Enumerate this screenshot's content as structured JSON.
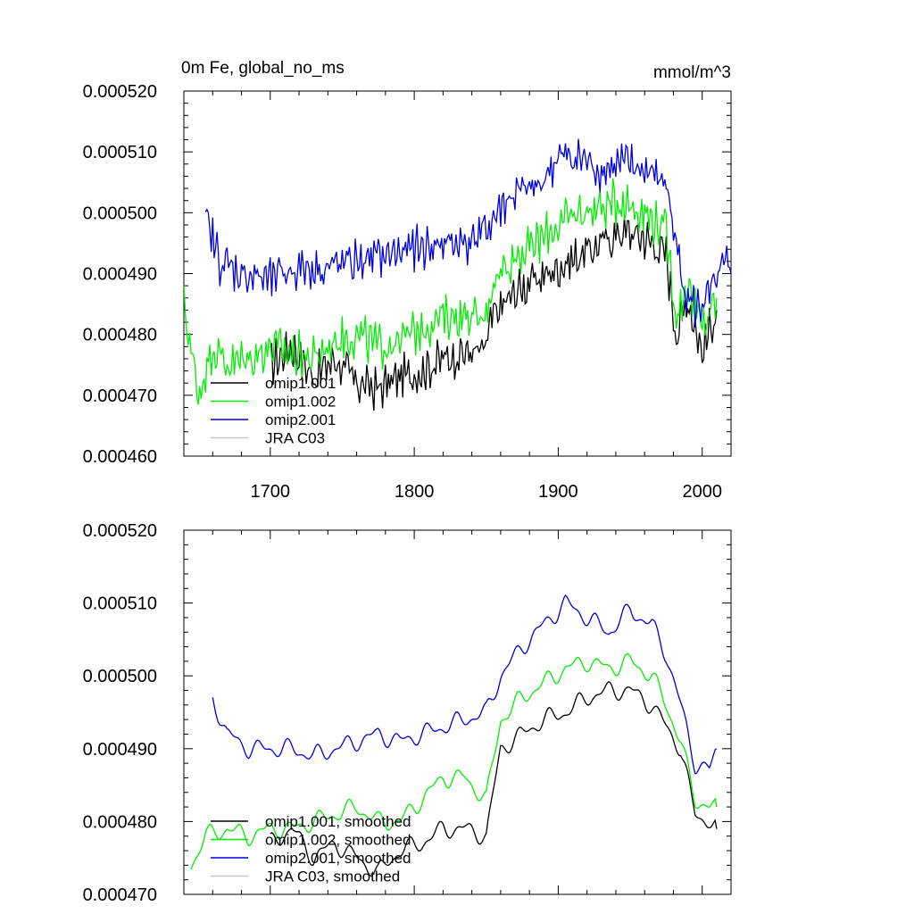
{
  "figure": {
    "title_left": "0m Fe, global_no_ms",
    "title_right": "mmol/m^3"
  },
  "chart_data": [
    {
      "type": "line",
      "title": "0m Fe, global_no_ms",
      "units": "mmol/m^3",
      "ylim": [
        0.00046,
        0.00052
      ],
      "xlim": [
        1640,
        2020
      ],
      "yticks": [
        "0.000460",
        "0.000470",
        "0.000480",
        "0.000490",
        "0.000500",
        "0.000510",
        "0.000520"
      ],
      "xticks": [
        "1700",
        "1800",
        "1900",
        "2000"
      ],
      "grid": false,
      "legend_position": "bottom-left",
      "series": [
        {
          "name": "omip1.001",
          "color": "#000000",
          "x": [
            1700,
            1715,
            1730,
            1745,
            1760,
            1775,
            1790,
            1805,
            1820,
            1835,
            1848,
            1855,
            1870,
            1885,
            1900,
            1915,
            1930,
            1945,
            1960,
            1975,
            1982,
            1990,
            2000,
            2010
          ],
          "values": [
            0.000475,
            0.000478,
            0.000473,
            0.000476,
            0.000472,
            0.000471,
            0.000473,
            0.000474,
            0.000476,
            0.000477,
            0.000477,
            0.000483,
            0.000487,
            0.000489,
            0.000491,
            0.000493,
            0.000495,
            0.000497,
            0.000496,
            0.000493,
            0.00048,
            0.000486,
            0.000477,
            0.000484
          ]
        },
        {
          "name": "omip1.002",
          "color": "#00ee00",
          "x": [
            1640,
            1650,
            1660,
            1670,
            1685,
            1700,
            1715,
            1730,
            1745,
            1760,
            1775,
            1790,
            1805,
            1820,
            1835,
            1848,
            1855,
            1870,
            1885,
            1900,
            1915,
            1930,
            1945,
            1960,
            1975,
            1982,
            1990,
            2000,
            2010
          ],
          "values": [
            0.000485,
            0.00047,
            0.000478,
            0.000475,
            0.000476,
            0.000478,
            0.000477,
            0.000476,
            0.000479,
            0.00048,
            0.000478,
            0.000479,
            0.000481,
            0.000483,
            0.000483,
            0.000482,
            0.000489,
            0.000493,
            0.000495,
            0.000498,
            0.0005,
            0.000501,
            0.000502,
            0.0005,
            0.000497,
            0.000483,
            0.000488,
            0.000481,
            0.000486
          ]
        },
        {
          "name": "omip2.001",
          "color": "#0000dd",
          "x": [
            1655,
            1665,
            1680,
            1700,
            1720,
            1740,
            1760,
            1780,
            1800,
            1820,
            1835,
            1850,
            1860,
            1870,
            1885,
            1900,
            1915,
            1930,
            1945,
            1960,
            1975,
            1985,
            1995,
            2005,
            2015,
            2020
          ],
          "values": [
            0.000499,
            0.000492,
            0.00049,
            0.000489,
            0.000491,
            0.000491,
            0.000492,
            0.000493,
            0.000494,
            0.000495,
            0.000495,
            0.000497,
            0.000501,
            0.000503,
            0.000504,
            0.000509,
            0.000509,
            0.000507,
            0.000508,
            0.000507,
            0.000505,
            0.00049,
            0.000484,
            0.000486,
            0.000491,
            0.00049
          ]
        },
        {
          "name": "JRA C03",
          "color": "#c8c8c8",
          "x": [],
          "values": []
        }
      ]
    },
    {
      "type": "line",
      "ylim": [
        0.00047,
        0.00052
      ],
      "xlim": [
        1640,
        2020
      ],
      "yticks": [
        "0.000470",
        "0.000480",
        "0.000490",
        "0.000500",
        "0.000510",
        "0.000520"
      ],
      "xticks": [],
      "grid": false,
      "legend_position": "bottom-left",
      "series": [
        {
          "name": "omip1.001, smoothed",
          "color": "#000000",
          "x": [
            1700,
            1715,
            1730,
            1745,
            1760,
            1775,
            1790,
            1805,
            1820,
            1835,
            1850,
            1860,
            1875,
            1890,
            1905,
            1920,
            1935,
            1950,
            1965,
            1975,
            1985,
            1995,
            2005,
            2010
          ],
          "values": [
            0.000477,
            0.000479,
            0.000475,
            0.000477,
            0.000475,
            0.000473,
            0.000476,
            0.000477,
            0.000479,
            0.000479,
            0.000478,
            0.00049,
            0.000492,
            0.000494,
            0.000495,
            0.000497,
            0.000498,
            0.000498,
            0.000496,
            0.000493,
            0.00049,
            0.000481,
            0.00048,
            0.000479
          ]
        },
        {
          "name": "omip1.002, smoothed",
          "color": "#00ee00",
          "x": [
            1645,
            1655,
            1670,
            1685,
            1700,
            1715,
            1730,
            1745,
            1760,
            1775,
            1790,
            1805,
            1820,
            1835,
            1850,
            1860,
            1875,
            1890,
            1905,
            1920,
            1935,
            1950,
            1965,
            1975,
            1985,
            1995,
            2005,
            2010
          ],
          "values": [
            0.000474,
            0.000478,
            0.000479,
            0.000478,
            0.000479,
            0.000479,
            0.00048,
            0.000481,
            0.000482,
            0.00048,
            0.00048,
            0.000483,
            0.000486,
            0.000486,
            0.000483,
            0.000494,
            0.000497,
            0.000499,
            0.000501,
            0.000502,
            0.000501,
            0.000502,
            0.0005,
            0.000496,
            0.000491,
            0.000483,
            0.000482,
            0.000482
          ]
        },
        {
          "name": "omip2.001, smoothed",
          "color": "#0000dd",
          "x": [
            1660,
            1670,
            1685,
            1700,
            1715,
            1730,
            1745,
            1760,
            1775,
            1790,
            1805,
            1820,
            1835,
            1850,
            1860,
            1875,
            1890,
            1905,
            1920,
            1935,
            1950,
            1965,
            1975,
            1985,
            1995,
            2005,
            2010
          ],
          "values": [
            0.000497,
            0.000492,
            0.00049,
            0.00049,
            0.00049,
            0.000489,
            0.00049,
            0.000491,
            0.000492,
            0.000491,
            0.000492,
            0.000493,
            0.000494,
            0.000495,
            0.0005,
            0.000504,
            0.000507,
            0.00051,
            0.000508,
            0.000506,
            0.000509,
            0.000507,
            0.000503,
            0.000496,
            0.000488,
            0.000487,
            0.00049
          ]
        },
        {
          "name": "JRA C03, smoothed",
          "color": "#c8c8c8",
          "x": [],
          "values": []
        }
      ]
    }
  ]
}
